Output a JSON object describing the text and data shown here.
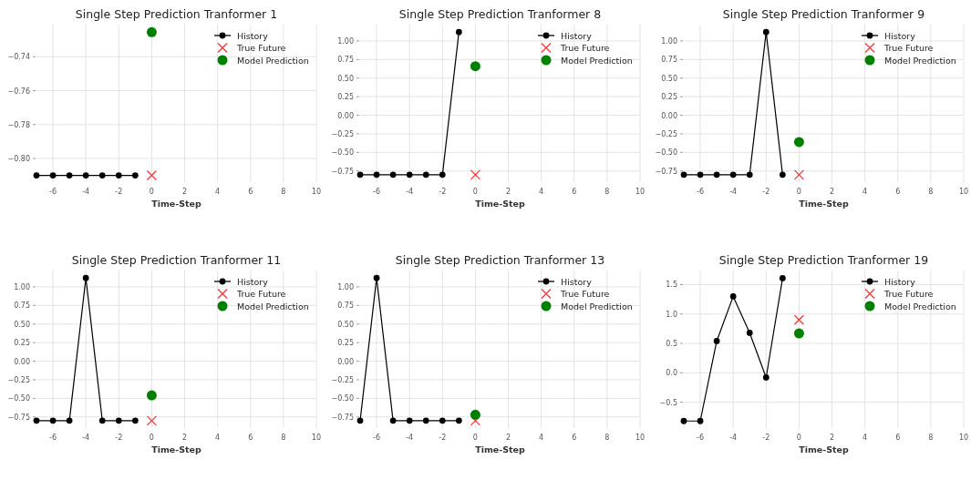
{
  "chart_data": [
    {
      "type": "line",
      "title": "Single Step Prediction Tranformer 1",
      "xlabel": "Time-Step",
      "xlim": [
        -7,
        10
      ],
      "xticks": [
        -6,
        -4,
        -2,
        0,
        2,
        4,
        6,
        8,
        10
      ],
      "ylim": [
        -0.814,
        -0.721
      ],
      "yticks": [
        {
          "value": -0.8,
          "label": "−0.80"
        },
        {
          "value": -0.78,
          "label": "−0.78"
        },
        {
          "value": -0.76,
          "label": "−0.76"
        },
        {
          "value": -0.74,
          "label": "−0.74"
        }
      ],
      "grid": true,
      "legend": "top right",
      "series": [
        {
          "name": "History",
          "type": "line",
          "color": "#000000",
          "marker": "circle",
          "x": [
            -7,
            -6,
            -5,
            -4,
            -3,
            -2,
            -1
          ],
          "values": [
            -0.81,
            -0.81,
            -0.81,
            -0.81,
            -0.81,
            -0.81,
            -0.81
          ]
        },
        {
          "name": "True Future",
          "type": "scatter",
          "color": "#ff3333",
          "marker": "cross",
          "x": [
            0
          ],
          "values": [
            -0.81
          ]
        },
        {
          "name": "Model Prediction",
          "type": "scatter",
          "color": "#008000",
          "marker": "circle",
          "x": [
            0
          ],
          "values": [
            -0.7255
          ]
        }
      ]
    },
    {
      "type": "line",
      "title": "Single Step Prediction Tranformer 8",
      "xlabel": "Time-Step",
      "xlim": [
        -7,
        10
      ],
      "xticks": [
        -6,
        -4,
        -2,
        0,
        2,
        4,
        6,
        8,
        10
      ],
      "ylim": [
        -0.9,
        1.22
      ],
      "yticks": [
        {
          "value": -0.75,
          "label": "−0.75"
        },
        {
          "value": -0.5,
          "label": "−0.50"
        },
        {
          "value": -0.25,
          "label": "−0.25"
        },
        {
          "value": 0,
          "label": "0.00"
        },
        {
          "value": 0.25,
          "label": "0.25"
        },
        {
          "value": 0.5,
          "label": "0.50"
        },
        {
          "value": 0.75,
          "label": "0.75"
        },
        {
          "value": 1,
          "label": "1.00"
        }
      ],
      "grid": true,
      "legend": "top right",
      "series": [
        {
          "name": "History",
          "type": "line",
          "color": "#000000",
          "marker": "circle",
          "x": [
            -7,
            -6,
            -5,
            -4,
            -3,
            -2,
            -1
          ],
          "values": [
            -0.8,
            -0.8,
            -0.8,
            -0.8,
            -0.8,
            -0.8,
            1.12
          ]
        },
        {
          "name": "True Future",
          "type": "scatter",
          "color": "#ff3333",
          "marker": "cross",
          "x": [
            0
          ],
          "values": [
            -0.8
          ]
        },
        {
          "name": "Model Prediction",
          "type": "scatter",
          "color": "#008000",
          "marker": "circle",
          "x": [
            0
          ],
          "values": [
            0.66
          ]
        }
      ]
    },
    {
      "type": "line",
      "title": "Single Step Prediction Tranformer 9",
      "xlabel": "Time-Step",
      "xlim": [
        -7,
        10
      ],
      "xticks": [
        -6,
        -4,
        -2,
        0,
        2,
        4,
        6,
        8,
        10
      ],
      "ylim": [
        -0.9,
        1.22
      ],
      "yticks": [
        {
          "value": -0.75,
          "label": "−0.75"
        },
        {
          "value": -0.5,
          "label": "−0.50"
        },
        {
          "value": -0.25,
          "label": "−0.25"
        },
        {
          "value": 0,
          "label": "0.00"
        },
        {
          "value": 0.25,
          "label": "0.25"
        },
        {
          "value": 0.5,
          "label": "0.50"
        },
        {
          "value": 0.75,
          "label": "0.75"
        },
        {
          "value": 1,
          "label": "1.00"
        }
      ],
      "grid": true,
      "legend": "top right",
      "series": [
        {
          "name": "History",
          "type": "line",
          "color": "#000000",
          "marker": "circle",
          "x": [
            -7,
            -6,
            -5,
            -4,
            -3,
            -2,
            -1
          ],
          "values": [
            -0.8,
            -0.8,
            -0.8,
            -0.8,
            -0.8,
            1.12,
            -0.8
          ]
        },
        {
          "name": "True Future",
          "type": "scatter",
          "color": "#ff3333",
          "marker": "cross",
          "x": [
            0
          ],
          "values": [
            -0.8
          ]
        },
        {
          "name": "Model Prediction",
          "type": "scatter",
          "color": "#008000",
          "marker": "circle",
          "x": [
            0
          ],
          "values": [
            -0.36
          ]
        }
      ]
    },
    {
      "type": "line",
      "title": "Single Step Prediction Tranformer 11",
      "xlabel": "Time-Step",
      "xlim": [
        -7,
        10
      ],
      "xticks": [
        -6,
        -4,
        -2,
        0,
        2,
        4,
        6,
        8,
        10
      ],
      "ylim": [
        -0.9,
        1.22
      ],
      "yticks": [
        {
          "value": -0.75,
          "label": "−0.75"
        },
        {
          "value": -0.5,
          "label": "−0.50"
        },
        {
          "value": -0.25,
          "label": "−0.25"
        },
        {
          "value": 0,
          "label": "0.00"
        },
        {
          "value": 0.25,
          "label": "0.25"
        },
        {
          "value": 0.5,
          "label": "0.50"
        },
        {
          "value": 0.75,
          "label": "0.75"
        },
        {
          "value": 1,
          "label": "1.00"
        }
      ],
      "grid": true,
      "legend": "top right",
      "series": [
        {
          "name": "History",
          "type": "line",
          "color": "#000000",
          "marker": "circle",
          "x": [
            -7,
            -6,
            -5,
            -4,
            -3,
            -2,
            -1
          ],
          "values": [
            -0.8,
            -0.8,
            -0.8,
            1.12,
            -0.8,
            -0.8,
            -0.8
          ]
        },
        {
          "name": "True Future",
          "type": "scatter",
          "color": "#ff3333",
          "marker": "cross",
          "x": [
            0
          ],
          "values": [
            -0.8
          ]
        },
        {
          "name": "Model Prediction",
          "type": "scatter",
          "color": "#008000",
          "marker": "circle",
          "x": [
            0
          ],
          "values": [
            -0.46
          ]
        }
      ]
    },
    {
      "type": "line",
      "title": "Single Step Prediction Tranformer 13",
      "xlabel": "Time-Step",
      "xlim": [
        -7,
        10
      ],
      "xticks": [
        -6,
        -4,
        -2,
        0,
        2,
        4,
        6,
        8,
        10
      ],
      "ylim": [
        -0.9,
        1.22
      ],
      "yticks": [
        {
          "value": -0.75,
          "label": "−0.75"
        },
        {
          "value": -0.5,
          "label": "−0.50"
        },
        {
          "value": -0.25,
          "label": "−0.25"
        },
        {
          "value": 0,
          "label": "0.00"
        },
        {
          "value": 0.25,
          "label": "0.25"
        },
        {
          "value": 0.5,
          "label": "0.50"
        },
        {
          "value": 0.75,
          "label": "0.75"
        },
        {
          "value": 1,
          "label": "1.00"
        }
      ],
      "grid": true,
      "legend": "top right",
      "series": [
        {
          "name": "History",
          "type": "line",
          "color": "#000000",
          "marker": "circle",
          "x": [
            -7,
            -6,
            -5,
            -4,
            -3,
            -2,
            -1
          ],
          "values": [
            -0.8,
            1.12,
            -0.8,
            -0.8,
            -0.8,
            -0.8,
            -0.8
          ]
        },
        {
          "name": "True Future",
          "type": "scatter",
          "color": "#ff3333",
          "marker": "cross",
          "x": [
            0
          ],
          "values": [
            -0.8
          ]
        },
        {
          "name": "Model Prediction",
          "type": "scatter",
          "color": "#008000",
          "marker": "circle",
          "x": [
            0
          ],
          "values": [
            -0.72
          ]
        }
      ]
    },
    {
      "type": "line",
      "title": "Single Step Prediction Tranformer 19",
      "xlabel": "Time-Step",
      "xlim": [
        -7,
        10
      ],
      "xticks": [
        -6,
        -4,
        -2,
        0,
        2,
        4,
        6,
        8,
        10
      ],
      "ylim": [
        -0.94,
        1.74
      ],
      "yticks": [
        {
          "value": -0.5,
          "label": "−0.5"
        },
        {
          "value": 0,
          "label": "0.0"
        },
        {
          "value": 0.5,
          "label": "0.5"
        },
        {
          "value": 1,
          "label": "1.0"
        },
        {
          "value": 1.5,
          "label": "1.5"
        }
      ],
      "grid": true,
      "legend": "top right",
      "series": [
        {
          "name": "History",
          "type": "line",
          "color": "#000000",
          "marker": "circle",
          "x": [
            -7,
            -6,
            -5,
            -4,
            -3,
            -2,
            -1
          ],
          "values": [
            -0.82,
            -0.82,
            0.54,
            1.3,
            0.68,
            -0.08,
            1.61
          ]
        },
        {
          "name": "True Future",
          "type": "scatter",
          "color": "#ff3333",
          "marker": "cross",
          "x": [
            0
          ],
          "values": [
            0.9
          ]
        },
        {
          "name": "Model Prediction",
          "type": "scatter",
          "color": "#008000",
          "marker": "circle",
          "x": [
            0
          ],
          "values": [
            0.67
          ]
        }
      ]
    }
  ]
}
